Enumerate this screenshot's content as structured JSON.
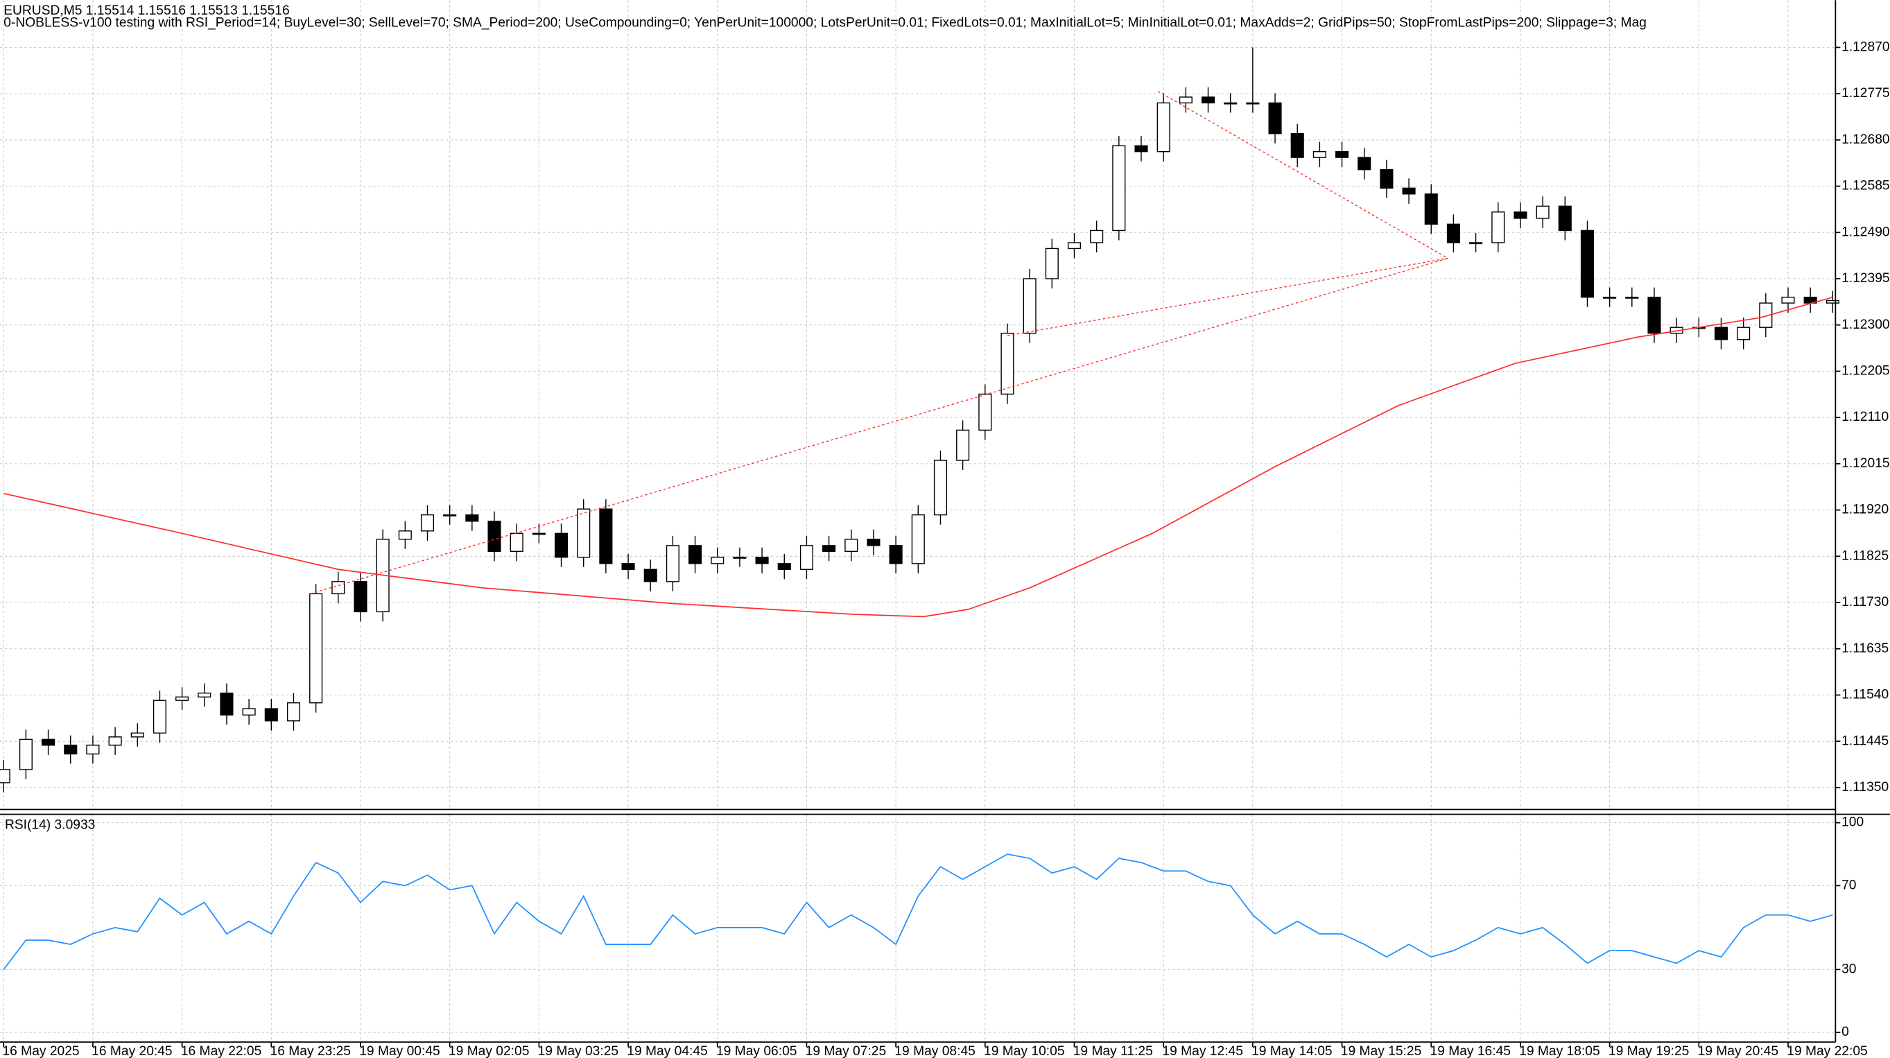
{
  "chart_data": [
    {
      "type": "candlestick",
      "title": "EURUSD,M5  1.15514 1.15516 1.15513 1.15516",
      "subtitle": "0-NOBLESS-v100 testing with RSI_Period=14; BuyLevel=30; SellLevel=70; SMA_Period=200; UseCompounding=0; YenPerUnit=100000; LotsPerUnit=0.01; FixedLots=0.01; MaxInitialLot=5; MinInitialLot=0.01; MaxAdds=2; GridPips=50; StopFromLastPips=200; Slippage=3; Mag",
      "x": [
        0,
        4,
        8,
        12,
        16,
        20,
        24,
        28,
        32,
        36,
        40,
        44,
        48,
        52,
        56,
        60,
        64,
        68,
        72,
        76,
        80,
        84,
        88,
        92,
        96,
        100,
        104,
        108,
        112,
        116,
        120,
        124,
        128,
        132,
        136,
        140,
        144,
        148,
        152,
        156,
        160,
        164,
        168,
        172,
        176,
        180,
        184,
        188,
        192,
        196,
        200,
        204,
        208,
        212,
        216,
        220,
        224,
        228,
        232,
        236,
        240,
        244,
        248,
        252,
        256,
        260,
        264,
        268,
        272,
        276,
        280,
        284,
        288,
        292,
        296,
        300,
        304,
        308,
        312,
        316,
        320,
        324,
        328
      ],
      "open": [
        1.1136,
        1.11387,
        1.11449,
        1.11437,
        1.11419,
        1.11437,
        1.11454,
        1.11462,
        1.11529,
        1.11536,
        1.11544,
        1.11499,
        1.11512,
        1.11487,
        1.11524,
        1.11748,
        1.11773,
        1.11711,
        1.1186,
        1.11877,
        1.1191,
        1.1191,
        1.11897,
        1.11835,
        1.11872,
        1.11872,
        1.11823,
        1.11922,
        1.1181,
        1.11798,
        1.11773,
        1.11847,
        1.1181,
        1.11823,
        1.11823,
        1.1181,
        1.11798,
        1.11847,
        1.11835,
        1.1186,
        1.11847,
        1.1181,
        1.1191,
        1.12022,
        1.12084,
        1.12158,
        1.12283,
        1.12395,
        1.12457,
        1.12469,
        1.12494,
        1.12668,
        1.12656,
        1.12756,
        1.12768,
        1.12756,
        1.12756,
        1.12756,
        1.12693,
        1.12644,
        1.12656,
        1.12644,
        1.12619,
        1.12581,
        1.12569,
        1.12507,
        1.12469,
        1.12469,
        1.12532,
        1.12519,
        1.12544,
        1.12494,
        1.12357,
        1.12357,
        1.12357,
        1.12283,
        1.12295,
        1.12295,
        1.1227,
        1.12295,
        1.12345,
        1.12357,
        1.12345
      ],
      "high": [
        1.11407,
        1.11469,
        1.11469,
        1.11457,
        1.11457,
        1.11474,
        1.11482,
        1.11549,
        1.11556,
        1.11564,
        1.11564,
        1.11532,
        1.11532,
        1.11544,
        1.11768,
        1.11793,
        1.11793,
        1.1188,
        1.11897,
        1.1193,
        1.1193,
        1.1193,
        1.11917,
        1.11892,
        1.11892,
        1.11892,
        1.11942,
        1.11942,
        1.1183,
        1.11818,
        1.11867,
        1.11867,
        1.11843,
        1.11843,
        1.11843,
        1.1183,
        1.11867,
        1.11867,
        1.1188,
        1.1188,
        1.11867,
        1.1193,
        1.12042,
        1.12104,
        1.12178,
        1.12303,
        1.12415,
        1.12477,
        1.12489,
        1.12514,
        1.12688,
        1.12688,
        1.12776,
        1.12788,
        1.12788,
        1.12776,
        1.1287,
        1.12776,
        1.12713,
        1.12676,
        1.12676,
        1.12664,
        1.12639,
        1.12601,
        1.12589,
        1.12527,
        1.12489,
        1.12552,
        1.12552,
        1.12564,
        1.12564,
        1.12514,
        1.12377,
        1.12377,
        1.12377,
        1.12315,
        1.12315,
        1.12315,
        1.12315,
        1.12365,
        1.12377,
        1.12377,
        1.1237
      ],
      "low": [
        1.1134,
        1.11367,
        1.11417,
        1.11399,
        1.11399,
        1.11417,
        1.11434,
        1.11442,
        1.11509,
        1.11516,
        1.11479,
        1.11479,
        1.11467,
        1.11467,
        1.11504,
        1.11728,
        1.11691,
        1.11691,
        1.1184,
        1.11857,
        1.1189,
        1.11877,
        1.11815,
        1.11815,
        1.11852,
        1.11803,
        1.11803,
        1.1179,
        1.11778,
        1.11753,
        1.11753,
        1.1179,
        1.1179,
        1.11803,
        1.1179,
        1.11778,
        1.11778,
        1.11815,
        1.11815,
        1.11827,
        1.1179,
        1.1179,
        1.1189,
        1.12002,
        1.12064,
        1.12138,
        1.12263,
        1.12375,
        1.12437,
        1.12449,
        1.12474,
        1.12636,
        1.12636,
        1.12736,
        1.12736,
        1.12736,
        1.12736,
        1.12673,
        1.12624,
        1.12624,
        1.12624,
        1.12599,
        1.12561,
        1.12549,
        1.12487,
        1.12449,
        1.12449,
        1.12449,
        1.12499,
        1.12499,
        1.12474,
        1.12337,
        1.12337,
        1.12337,
        1.12263,
        1.12263,
        1.12275,
        1.1225,
        1.1225,
        1.12275,
        1.12325,
        1.12325,
        1.12325
      ],
      "close": [
        1.11387,
        1.11449,
        1.11437,
        1.11419,
        1.11437,
        1.11454,
        1.11462,
        1.11529,
        1.11536,
        1.11544,
        1.11499,
        1.11512,
        1.11487,
        1.11524,
        1.11748,
        1.11773,
        1.11711,
        1.1186,
        1.11877,
        1.1191,
        1.1191,
        1.11897,
        1.11835,
        1.11872,
        1.11872,
        1.11823,
        1.11922,
        1.1181,
        1.11798,
        1.11773,
        1.11847,
        1.1181,
        1.11823,
        1.11823,
        1.1181,
        1.11798,
        1.11847,
        1.11835,
        1.1186,
        1.11847,
        1.1181,
        1.1191,
        1.12022,
        1.12084,
        1.12158,
        1.12283,
        1.12395,
        1.12457,
        1.12469,
        1.12494,
        1.12668,
        1.12656,
        1.12756,
        1.12768,
        1.12756,
        1.12756,
        1.12756,
        1.12693,
        1.12644,
        1.12656,
        1.12644,
        1.12619,
        1.12581,
        1.12569,
        1.12507,
        1.12469,
        1.12469,
        1.12532,
        1.12519,
        1.12544,
        1.12494,
        1.12357,
        1.12357,
        1.12357,
        1.12283,
        1.12295,
        1.12295,
        1.1227,
        1.12295,
        1.12345,
        1.12357,
        1.12345,
        1.1235
      ],
      "up_color": "#ffffff",
      "down_color": "#000000",
      "edge_color": "#000000",
      "lines": [
        {
          "x": [
            0,
            32,
            60,
            86,
            120,
            152,
            165,
            173,
            184,
            206,
            228,
            250,
            271,
            293,
            315,
            328
          ],
          "values": [
            1.11954,
            1.11872,
            1.11798,
            1.1176,
            1.11728,
            1.11706,
            1.11701,
            1.11716,
            1.1176,
            1.11872,
            1.12009,
            1.12134,
            1.12221,
            1.12275,
            1.12315,
            1.12357
          ],
          "color": "#ff3030",
          "style": "solid"
        },
        {
          "x": [
            55,
            259
          ],
          "values": [
            1.11748,
            1.12437
          ],
          "color": "#ff3030",
          "style": "dotted"
        },
        {
          "x": [
            180,
            259
          ],
          "values": [
            1.12278,
            1.12437
          ],
          "color": "#ff3030",
          "style": "dotted"
        },
        {
          "x": [
            207,
            259
          ],
          "values": [
            1.1278,
            1.12437
          ],
          "color": "#ff3030",
          "style": "dotted"
        }
      ],
      "ylim": [
        1.11305,
        1.12967
      ],
      "yticks": [
        {
          "value": 1.1287,
          "label": "1.12870"
        },
        1.12775,
        {
          "value": 1.1268,
          "label": "1.12680"
        },
        1.12585,
        {
          "value": 1.1249,
          "label": "1.12490"
        },
        1.12395,
        {
          "value": 1.123,
          "label": "1.12300"
        },
        1.12205,
        {
          "value": 1.1211,
          "label": "1.12110"
        },
        1.12015,
        {
          "value": 1.1192,
          "label": "1.11920"
        },
        1.11825,
        {
          "value": 1.1173,
          "label": "1.11730"
        },
        1.11635,
        {
          "value": 1.1154,
          "label": "1.11540"
        },
        1.11445,
        {
          "value": 1.1135,
          "label": "1.11350"
        }
      ],
      "xlim": [
        -0.65,
        328.5
      ],
      "xticks": [
        {
          "value": 0,
          "label": "16 May 2025"
        },
        {
          "value": 16,
          "label": "16 May 20:45"
        },
        {
          "value": 32,
          "label": "16 May 22:05"
        },
        {
          "value": 48,
          "label": "16 May 23:25"
        },
        {
          "value": 64,
          "label": "19 May 00:45"
        },
        {
          "value": 80,
          "label": "19 May 02:05"
        },
        {
          "value": 96,
          "label": "19 May 03:25"
        },
        {
          "value": 112,
          "label": "19 May 04:45"
        },
        {
          "value": 128,
          "label": "19 May 06:05"
        },
        {
          "value": 144,
          "label": "19 May 07:25"
        },
        {
          "value": 160,
          "label": "19 May 08:45"
        },
        {
          "value": 176,
          "label": "19 May 10:05"
        },
        {
          "value": 192,
          "label": "19 May 11:25"
        },
        {
          "value": 208,
          "label": "19 May 12:45"
        },
        {
          "value": 224,
          "label": "19 May 14:05"
        },
        {
          "value": 240,
          "label": "19 May 15:25"
        },
        {
          "value": 256,
          "label": "19 May 16:45"
        },
        {
          "value": 272,
          "label": "19 May 18:05"
        },
        {
          "value": 288,
          "label": "19 May 19:25"
        },
        {
          "value": 304,
          "label": "19 May 20:45"
        },
        {
          "value": 320,
          "label": "19 May 22:05"
        }
      ],
      "grid": true
    },
    {
      "type": "line",
      "title": "RSI(14) 3.0933",
      "x": [
        0,
        4,
        8,
        12,
        16,
        20,
        24,
        28,
        32,
        36,
        40,
        44,
        48,
        52,
        56,
        60,
        64,
        68,
        72,
        76,
        80,
        84,
        88,
        92,
        96,
        100,
        104,
        108,
        112,
        116,
        120,
        124,
        128,
        132,
        136,
        140,
        144,
        148,
        152,
        156,
        160,
        164,
        168,
        172,
        176,
        180,
        184,
        188,
        192,
        196,
        200,
        204,
        208,
        212,
        216,
        220,
        224,
        228,
        232,
        236,
        240,
        244,
        248,
        252,
        256,
        260,
        264,
        268,
        272,
        276,
        280,
        284,
        288,
        292,
        296,
        300,
        304,
        308,
        312,
        316,
        320,
        324,
        328
      ],
      "values": [
        30,
        44,
        44,
        42,
        47,
        50,
        48,
        64,
        56,
        62,
        47,
        53,
        47,
        65,
        81,
        76,
        62,
        72,
        70,
        75,
        68,
        70,
        47,
        62,
        53,
        47,
        65,
        42,
        42,
        42,
        56,
        47,
        50,
        50,
        50,
        47,
        62,
        50,
        56,
        50,
        42,
        65,
        79,
        73,
        79,
        85,
        83,
        76,
        79,
        73,
        83,
        81,
        77,
        77,
        72,
        70,
        56,
        47,
        53,
        47,
        47,
        42,
        36,
        42,
        36,
        39,
        44,
        50,
        47,
        50,
        42,
        33,
        39,
        39,
        36,
        33,
        39,
        36,
        50,
        56,
        56,
        53,
        56
      ],
      "color": "#1e90ff",
      "ylim": [
        -4.6,
        104
      ],
      "yticks": [
        100,
        70,
        30,
        0
      ],
      "xlim": [
        -0.65,
        328.5
      ],
      "grid": true
    }
  ]
}
